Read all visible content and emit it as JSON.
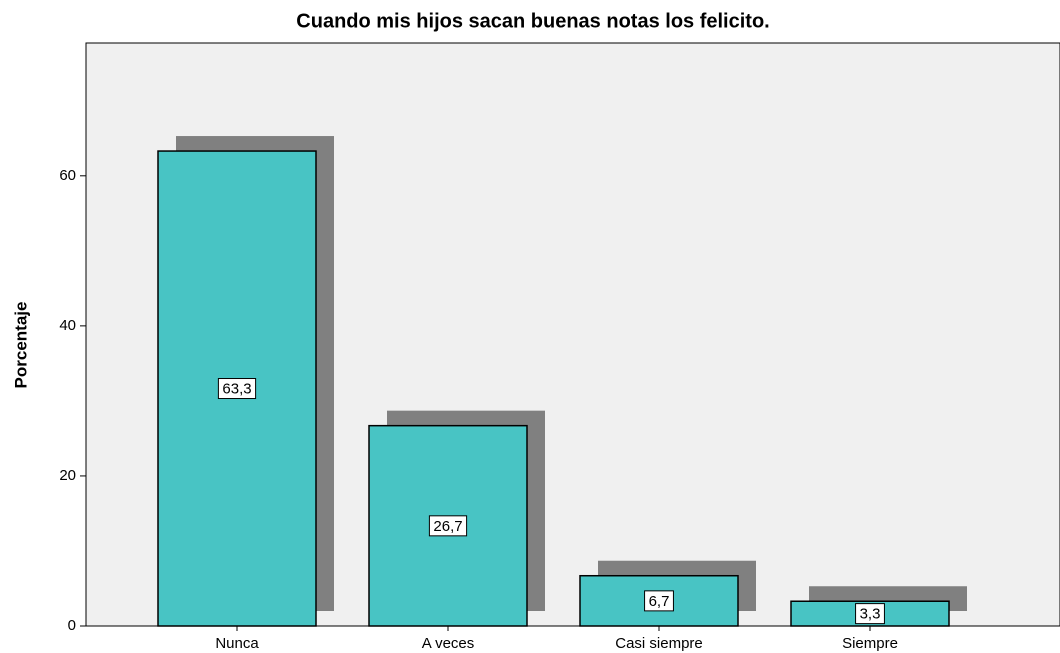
{
  "chart_data": {
    "type": "bar",
    "title": "Cuando mis hijos sacan buenas notas los felicito.",
    "y_label": "Porcentaje",
    "categories": [
      "Nunca",
      "A veces",
      "Casi siempre",
      "Siempre"
    ],
    "values": [
      63.3,
      26.7,
      6.7,
      3.3
    ],
    "value_labels": [
      "63,3",
      "26,7",
      "6,7",
      "3,3"
    ],
    "color": "#48c4c4",
    "ylim": [
      0,
      77.7
    ],
    "yticks": [
      0,
      20,
      40,
      60
    ]
  }
}
